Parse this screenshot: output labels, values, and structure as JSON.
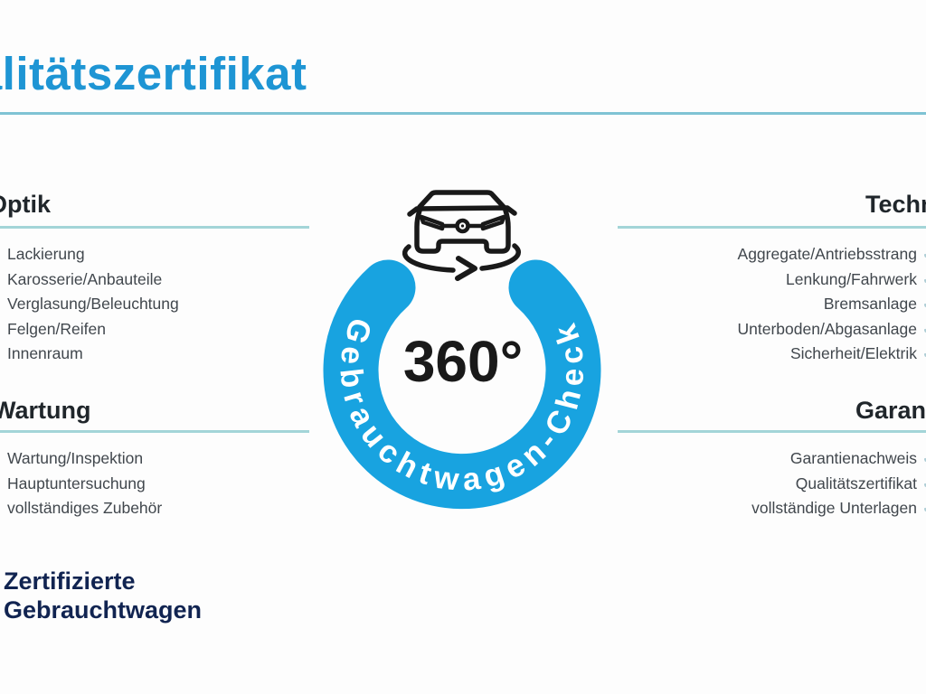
{
  "title": "Qualitätszertifikat",
  "badge": {
    "degrees": "360°",
    "ring_label": "Gebrauchtwagen-Check"
  },
  "sections": {
    "optik": {
      "heading": "Optik",
      "items": [
        "Lackierung",
        "Karosserie/Anbauteile",
        "Verglasung/Beleuchtung",
        "Felgen/Reifen",
        "Innenraum"
      ]
    },
    "wartung": {
      "heading": "Wartung",
      "items": [
        "Wartung/Inspektion",
        "Hauptuntersuchung",
        "vollständiges Zubehör"
      ]
    },
    "technik": {
      "heading": "Technik",
      "items": [
        "Aggregate/Antriebsstrang",
        "Lenkung/Fahrwerk",
        "Bremsanlage",
        "Unterboden/Abgasanlage",
        "Sicherheit/Elektrik"
      ]
    },
    "garantie": {
      "heading": "Garantie",
      "items": [
        "Garantienachweis",
        "Qualitätszertifikat",
        "vollständige Unterlagen"
      ]
    }
  },
  "brand": {
    "line1": "Zertifizierte",
    "line2": "Gebrauchtwagen"
  },
  "icons": {
    "check": "✓"
  },
  "colors": {
    "title_blue": "#1e95d4",
    "ring_blue": "#18a3e0",
    "brand_navy": "#112451",
    "section_rule_teal": "#a3d5d8",
    "title_rule_teal": "#7fc3d4",
    "check_teal": "#aecdd5",
    "item_text": "#41474d",
    "heading_text": "#20262b",
    "badge_text": "#191919"
  }
}
